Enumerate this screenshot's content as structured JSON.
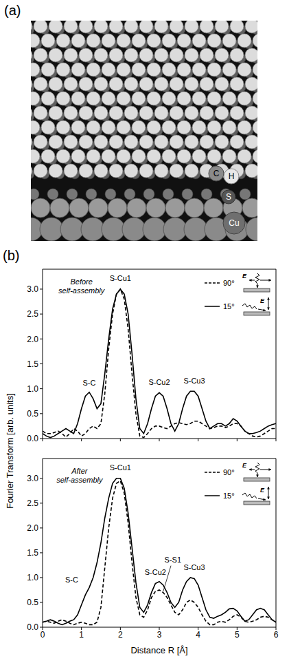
{
  "figure": {
    "panel_a": {
      "label": "(a)",
      "atom_labels": [
        "C",
        "H",
        "S",
        "Cu"
      ]
    },
    "panel_b": {
      "label": "(b)",
      "ylabel": "Fourier Transform [arb. units]",
      "field_label": "E"
    }
  },
  "chart_data": [
    {
      "type": "line",
      "x": [
        0,
        0.1,
        0.2,
        0.3,
        0.4,
        0.5,
        0.6,
        0.7,
        0.8,
        0.9,
        1.0,
        1.1,
        1.2,
        1.3,
        1.4,
        1.5,
        1.6,
        1.7,
        1.8,
        1.9,
        2.0,
        2.1,
        2.2,
        2.3,
        2.4,
        2.5,
        2.6,
        2.7,
        2.8,
        2.9,
        3.0,
        3.1,
        3.2,
        3.3,
        3.4,
        3.5,
        3.6,
        3.7,
        3.8,
        3.9,
        4.0,
        4.1,
        4.2,
        4.3,
        4.4,
        4.5,
        4.6,
        4.7,
        4.8,
        4.9,
        5.0,
        5.1,
        5.2,
        5.3,
        5.4,
        5.5,
        5.6,
        5.7,
        5.8,
        5.9,
        6.0
      ],
      "xlim": [
        0,
        6
      ],
      "xticks": [
        0,
        1,
        2,
        3,
        4,
        5,
        6
      ],
      "ylim": [
        0,
        3.4
      ],
      "yticks": [
        {
          "value": 0,
          "label": "0.0"
        },
        0.5,
        {
          "value": 1,
          "label": "1.0"
        },
        1.5,
        {
          "value": 2,
          "label": "2.0"
        },
        2.5,
        {
          "value": 3,
          "label": "3.0"
        }
      ],
      "tick_labels": "y",
      "legend": "upper right",
      "series": [
        {
          "name": "90°",
          "color": "#000000",
          "line_style": "dashed",
          "values": [
            0.15,
            0.1,
            0.1,
            0.12,
            0.15,
            0.1,
            0.03,
            0.1,
            0.2,
            0.15,
            0.05,
            0.1,
            0.2,
            0.25,
            0.2,
            0.3,
            0.9,
            1.8,
            2.5,
            2.9,
            3.0,
            2.8,
            2.2,
            1.3,
            0.5,
            0.05,
            0.02,
            0.1,
            0.2,
            0.25,
            0.25,
            0.22,
            0.2,
            0.25,
            0.3,
            0.32,
            0.3,
            0.28,
            0.3,
            0.35,
            0.35,
            0.3,
            0.25,
            0.2,
            0.22,
            0.25,
            0.25,
            0.22,
            0.25,
            0.3,
            0.3,
            0.25,
            0.15,
            0.1,
            0.05,
            0.03,
            0.05,
            0.1,
            0.15,
            0.2,
            0.2
          ]
        },
        {
          "name": "15°",
          "color": "#000000",
          "line_style": "solid",
          "values": [
            0.1,
            0.05,
            0.02,
            0.05,
            0.1,
            0.15,
            0.2,
            0.15,
            0.1,
            0.3,
            0.6,
            0.85,
            0.93,
            0.8,
            0.6,
            0.7,
            1.3,
            2.0,
            2.6,
            2.9,
            3.0,
            2.9,
            2.5,
            1.7,
            0.8,
            0.2,
            0.1,
            0.3,
            0.6,
            0.85,
            0.92,
            0.85,
            0.6,
            0.3,
            0.15,
            0.3,
            0.6,
            0.85,
            0.95,
            0.95,
            0.85,
            0.6,
            0.35,
            0.2,
            0.25,
            0.3,
            0.3,
            0.25,
            0.3,
            0.4,
            0.35,
            0.25,
            0.15,
            0.1,
            0.1,
            0.12,
            0.15,
            0.2,
            0.25,
            0.28,
            0.3
          ]
        }
      ],
      "annotations": [
        {
          "text": "Before self-assembly",
          "x": 1.0,
          "y": 3.05
        },
        {
          "text": "S-Cu1",
          "x": 2.0,
          "y": 3.2
        },
        {
          "text": "S-C",
          "x": 1.2,
          "y": 1.1
        },
        {
          "text": "S-Cu2",
          "x": 3.0,
          "y": 1.12
        },
        {
          "text": "S-Cu3",
          "x": 3.9,
          "y": 1.15
        }
      ]
    },
    {
      "type": "line",
      "x": [
        0,
        0.1,
        0.2,
        0.3,
        0.4,
        0.5,
        0.6,
        0.7,
        0.8,
        0.9,
        1.0,
        1.1,
        1.2,
        1.3,
        1.4,
        1.5,
        1.6,
        1.7,
        1.8,
        1.9,
        2.0,
        2.1,
        2.2,
        2.3,
        2.4,
        2.5,
        2.6,
        2.7,
        2.8,
        2.9,
        3.0,
        3.1,
        3.2,
        3.3,
        3.4,
        3.5,
        3.6,
        3.7,
        3.8,
        3.9,
        4.0,
        4.1,
        4.2,
        4.3,
        4.4,
        4.5,
        4.6,
        4.7,
        4.8,
        4.9,
        5.0,
        5.1,
        5.2,
        5.3,
        5.4,
        5.5,
        5.6,
        5.7,
        5.8,
        5.9,
        6.0
      ],
      "xlabel": "Distance R [Å]",
      "xlim": [
        0,
        6
      ],
      "xticks": [
        0,
        1,
        2,
        3,
        4,
        5,
        6
      ],
      "ylim": [
        0,
        3.4
      ],
      "yticks": [
        {
          "value": 0,
          "label": "0.0"
        },
        0.5,
        {
          "value": 1,
          "label": "1.0"
        },
        1.5,
        {
          "value": 2,
          "label": "2.0"
        },
        2.5,
        {
          "value": 3,
          "label": "3.0"
        }
      ],
      "legend": "upper right",
      "series": [
        {
          "name": "90°",
          "color": "#000000",
          "line_style": "dashed",
          "values": [
            0.1,
            0.12,
            0.1,
            0.08,
            0.12,
            0.15,
            0.12,
            0.08,
            0.05,
            0.08,
            0.1,
            0.08,
            0.05,
            0.05,
            0.1,
            0.4,
            1.2,
            2.0,
            2.6,
            2.9,
            2.95,
            2.7,
            2.1,
            1.3,
            0.6,
            0.25,
            0.2,
            0.35,
            0.6,
            0.72,
            0.75,
            0.7,
            0.6,
            0.45,
            0.3,
            0.25,
            0.35,
            0.5,
            0.55,
            0.5,
            0.4,
            0.25,
            0.12,
            0.05,
            0.05,
            0.1,
            0.12,
            0.1,
            0.15,
            0.22,
            0.25,
            0.2,
            0.12,
            0.1,
            0.12,
            0.15,
            0.2,
            0.22,
            0.2,
            0.15,
            0.1
          ]
        },
        {
          "name": "15°",
          "color": "#000000",
          "line_style": "solid",
          "values": [
            0.1,
            0.12,
            0.15,
            0.12,
            0.08,
            0.05,
            0.08,
            0.12,
            0.15,
            0.25,
            0.45,
            0.65,
            0.8,
            1.0,
            1.3,
            1.7,
            2.2,
            2.6,
            2.9,
            3.0,
            3.0,
            2.8,
            2.3,
            1.6,
            0.9,
            0.4,
            0.3,
            0.45,
            0.7,
            0.88,
            0.92,
            0.85,
            0.7,
            0.5,
            0.4,
            0.5,
            0.75,
            0.92,
            1.0,
            0.98,
            0.85,
            0.6,
            0.35,
            0.2,
            0.18,
            0.22,
            0.25,
            0.3,
            0.37,
            0.38,
            0.33,
            0.22,
            0.12,
            0.15,
            0.25,
            0.35,
            0.38,
            0.35,
            0.25,
            0.15,
            0.1
          ]
        }
      ],
      "annotations": [
        {
          "text": "After self-assembly",
          "x": 0.95,
          "y": 3.05
        },
        {
          "text": "S-Cu1",
          "x": 2.0,
          "y": 3.2
        },
        {
          "text": "S-C",
          "x": 0.75,
          "y": 0.95
        },
        {
          "text": "S-Cu2",
          "x": 2.9,
          "y": 1.1
        },
        {
          "text": "S-S1",
          "x": 3.35,
          "y": 1.35,
          "xy": [
            3.1,
            0.72
          ]
        },
        {
          "text": "S-Cu3",
          "x": 3.9,
          "y": 1.2
        }
      ]
    }
  ]
}
